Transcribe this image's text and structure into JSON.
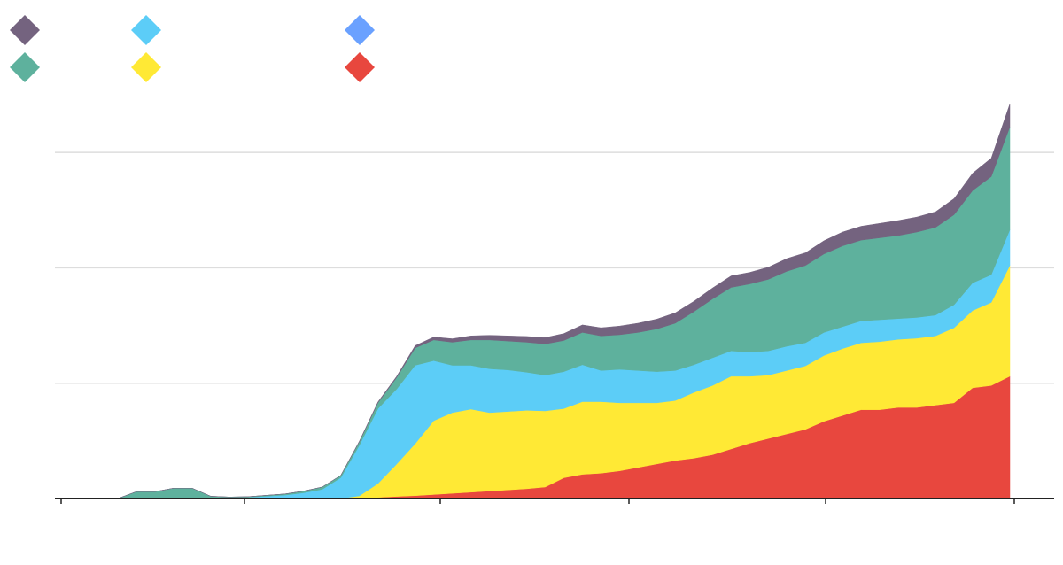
{
  "chart_data": {
    "type": "area",
    "stacked": true,
    "grid": true,
    "legend_placement": "top-left",
    "title": "",
    "xlabel": "",
    "ylabel": "",
    "ylim": [
      0,
      3.4
    ],
    "y_gridlines": [
      1,
      2,
      3
    ],
    "x": [
      1,
      2,
      3,
      4,
      5,
      6,
      7,
      8,
      9,
      10,
      11,
      12,
      13,
      14,
      15,
      16,
      17,
      18,
      19,
      20,
      21,
      22,
      23,
      24,
      25,
      26,
      27,
      28,
      29,
      30,
      31,
      32,
      33,
      34,
      35,
      36,
      37,
      38,
      39,
      40,
      41,
      42,
      43,
      44,
      45,
      46,
      47,
      48,
      49,
      50
    ],
    "legend_order": [
      "purple",
      "cyan",
      "blue",
      "teal",
      "yellow",
      "red"
    ],
    "series": [
      {
        "key": "red",
        "color": "#e8473e",
        "values": [
          0,
          0,
          0,
          0,
          0,
          0,
          0,
          0,
          0,
          0,
          0,
          0,
          0,
          0,
          0.003,
          0.01,
          0.018,
          0.025,
          0.035,
          0.045,
          0.055,
          0.065,
          0.075,
          0.085,
          0.1,
          0.18,
          0.21,
          0.22,
          0.24,
          0.27,
          0.3,
          0.33,
          0.35,
          0.38,
          0.43,
          0.48,
          0.52,
          0.56,
          0.6,
          0.67,
          0.72,
          0.77,
          0.77,
          0.79,
          0.79,
          0.81,
          0.83,
          0.96,
          0.98,
          1.06
        ]
      },
      {
        "key": "yellow",
        "color": "#ffe935",
        "values": [
          0,
          0,
          0,
          0,
          0,
          0,
          0,
          0,
          0,
          0,
          0,
          0,
          0,
          0.001,
          0.02,
          0.12,
          0.28,
          0.45,
          0.64,
          0.7,
          0.72,
          0.68,
          0.68,
          0.68,
          0.66,
          0.6,
          0.63,
          0.62,
          0.59,
          0.56,
          0.53,
          0.52,
          0.57,
          0.6,
          0.63,
          0.58,
          0.55,
          0.55,
          0.55,
          0.57,
          0.58,
          0.58,
          0.59,
          0.59,
          0.6,
          0.6,
          0.65,
          0.67,
          0.72,
          0.96
        ]
      },
      {
        "key": "cyan",
        "color": "#5ccdf7",
        "values": [
          0,
          0,
          0,
          0,
          0,
          0,
          0,
          0.005,
          0.01,
          0.02,
          0.03,
          0.05,
          0.08,
          0.18,
          0.44,
          0.65,
          0.65,
          0.68,
          0.52,
          0.41,
          0.38,
          0.38,
          0.36,
          0.33,
          0.31,
          0.32,
          0.32,
          0.27,
          0.29,
          0.28,
          0.27,
          0.26,
          0.24,
          0.24,
          0.22,
          0.21,
          0.21,
          0.21,
          0.2,
          0.2,
          0.19,
          0.19,
          0.19,
          0.18,
          0.18,
          0.18,
          0.2,
          0.24,
          0.24,
          0.31
        ]
      },
      {
        "key": "blue",
        "color": "#6aa1ff",
        "values": [
          0,
          0,
          0,
          0,
          0,
          0,
          0,
          0,
          0,
          0,
          0,
          0,
          0,
          0,
          0,
          0,
          0,
          0,
          0,
          0,
          0,
          0,
          0,
          0,
          0,
          0,
          0,
          0,
          0,
          0,
          0,
          0,
          0,
          0,
          0,
          0,
          0,
          0,
          0,
          0,
          0,
          0,
          0,
          0,
          0,
          0,
          0,
          0,
          0,
          0
        ]
      },
      {
        "key": "teal",
        "color": "#5eb19d",
        "values": [
          0,
          0,
          0.06,
          0.06,
          0.09,
          0.09,
          0.02,
          0.008,
          0.006,
          0.008,
          0.01,
          0.015,
          0.02,
          0.02,
          0.03,
          0.05,
          0.1,
          0.15,
          0.18,
          0.2,
          0.22,
          0.25,
          0.25,
          0.26,
          0.27,
          0.27,
          0.28,
          0.3,
          0.3,
          0.33,
          0.37,
          0.41,
          0.46,
          0.51,
          0.55,
          0.59,
          0.62,
          0.65,
          0.67,
          0.68,
          0.7,
          0.7,
          0.71,
          0.72,
          0.74,
          0.76,
          0.78,
          0.8,
          0.85,
          0.89
        ]
      },
      {
        "key": "purple",
        "color": "#74637f",
        "values": [
          0,
          0,
          0,
          0,
          0,
          0,
          0,
          0,
          0,
          0,
          0,
          0,
          0,
          0,
          0.005,
          0.008,
          0.01,
          0.02,
          0.025,
          0.03,
          0.035,
          0.04,
          0.045,
          0.05,
          0.055,
          0.06,
          0.065,
          0.07,
          0.075,
          0.08,
          0.085,
          0.09,
          0.09,
          0.095,
          0.1,
          0.1,
          0.105,
          0.11,
          0.11,
          0.115,
          0.12,
          0.12,
          0.125,
          0.13,
          0.13,
          0.135,
          0.14,
          0.15,
          0.16,
          0.2
        ]
      }
    ]
  }
}
